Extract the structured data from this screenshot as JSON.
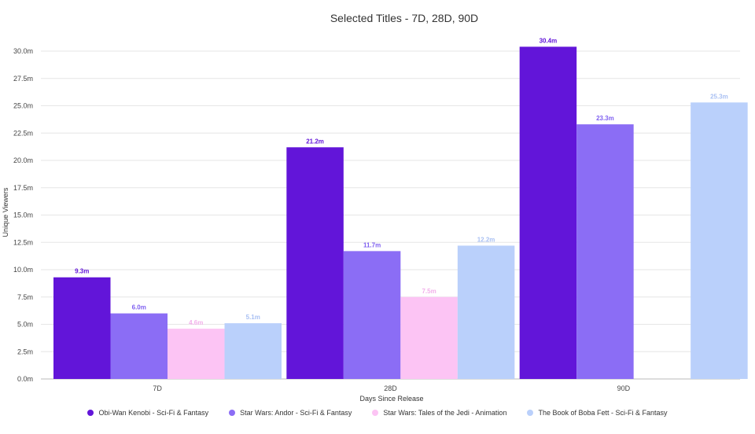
{
  "chart_data": {
    "type": "bar",
    "title": "Selected Titles - 7D, 28D, 90D",
    "xlabel": "Days Since Release",
    "ylabel": "Unique Viewers",
    "categories": [
      "7D",
      "28D",
      "90D"
    ],
    "ylim": [
      0,
      30
    ],
    "yticks": [
      "0.0m",
      "2.5m",
      "5.0m",
      "7.5m",
      "10.0m",
      "12.5m",
      "15.0m",
      "17.5m",
      "20.0m",
      "22.5m",
      "25.0m",
      "27.5m",
      "30.0m"
    ],
    "legend_position": "bottom",
    "grid": true,
    "series": [
      {
        "name": "Obi-Wan Kenobi - Sci-Fi & Fantasy",
        "color": "#6215d9",
        "label_color": "#6215d9",
        "values": [
          9.3,
          21.2,
          30.4
        ],
        "labels": [
          "9.3m",
          "21.2m",
          "30.4m"
        ]
      },
      {
        "name": "Star Wars: Andor - Sci-Fi & Fantasy",
        "color": "#8b6df5",
        "label_color": "#7e5ff0",
        "values": [
          6.0,
          11.7,
          23.3
        ],
        "labels": [
          "6.0m",
          "11.7m",
          "23.3m"
        ]
      },
      {
        "name": "Star Wars: Tales of the Jedi - Animation",
        "color": "#fcc4f4",
        "label_color": "#f2b0ea",
        "values": [
          4.6,
          7.5,
          null
        ],
        "labels": [
          "4.6m",
          "7.5m",
          null
        ]
      },
      {
        "name": "The Book of Boba Fett - Sci-Fi & Fantasy",
        "color": "#bad0fb",
        "label_color": "#a9c0f3",
        "values": [
          5.1,
          12.2,
          25.3
        ],
        "labels": [
          "5.1m",
          "12.2m",
          "25.3m"
        ]
      }
    ]
  }
}
